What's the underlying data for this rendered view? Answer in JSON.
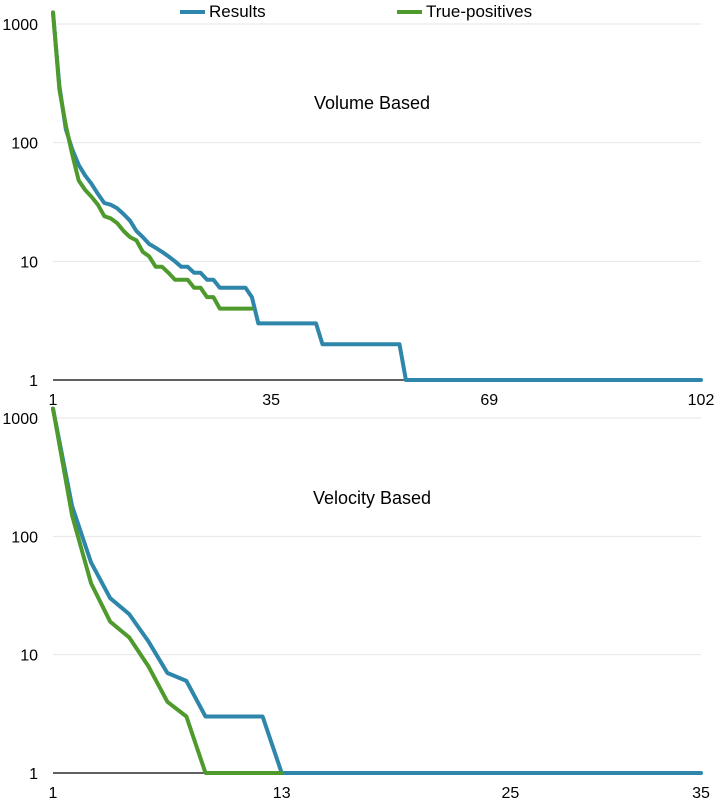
{
  "legend": {
    "items": [
      {
        "label": "Results",
        "color": "#2e86ab"
      },
      {
        "label": "True-positives",
        "color": "#4f9a2c"
      }
    ]
  },
  "colors": {
    "grid": "#e6e6e6",
    "axis": "#000000"
  },
  "chart_data": [
    {
      "type": "line",
      "title": "Volume Based",
      "xlabel": "",
      "ylabel": "",
      "y_scale": "log",
      "ylim": [
        1,
        1000
      ],
      "xlim": [
        1,
        102
      ],
      "x_ticks": [
        1,
        35,
        69,
        102
      ],
      "y_ticks": [
        1,
        10,
        100,
        1000
      ],
      "grid": true,
      "legend_position": "top",
      "series": [
        {
          "name": "Results",
          "color": "#2e86ab",
          "x": [
            1,
            2,
            3,
            4,
            5,
            6,
            7,
            8,
            9,
            10,
            11,
            12,
            13,
            14,
            15,
            16,
            17,
            18,
            19,
            20,
            21,
            22,
            23,
            24,
            25,
            26,
            27,
            28,
            29,
            30,
            31,
            32,
            33,
            34,
            35,
            36,
            37,
            38,
            39,
            40,
            41,
            42,
            43,
            44,
            45,
            46,
            47,
            48,
            49,
            50,
            51,
            52,
            53,
            54,
            55,
            56,
            57,
            58,
            59,
            60,
            61,
            62,
            63,
            64,
            65,
            66,
            67,
            68,
            69,
            70,
            71,
            72,
            73,
            74,
            75,
            76,
            77,
            78,
            79,
            80,
            81,
            82,
            83,
            84,
            85,
            86,
            87,
            88,
            89,
            90,
            91,
            92,
            93,
            94,
            95,
            96,
            97,
            98,
            99,
            100,
            101,
            102
          ],
          "y": [
            1250,
            300,
            130,
            88,
            65,
            53,
            45,
            37,
            31,
            30,
            28,
            25,
            22,
            18,
            16,
            14,
            13,
            12,
            11,
            10,
            9,
            9,
            8,
            8,
            7,
            7,
            6,
            6,
            6,
            6,
            6,
            5,
            3,
            3,
            3,
            3,
            3,
            3,
            3,
            3,
            3,
            3,
            2,
            2,
            2,
            2,
            2,
            2,
            2,
            2,
            2,
            2,
            2,
            2,
            2,
            1,
            1,
            1,
            1,
            1,
            1,
            1,
            1,
            1,
            1,
            1,
            1,
            1,
            1,
            1,
            1,
            1,
            1,
            1,
            1,
            1,
            1,
            1,
            1,
            1,
            1,
            1,
            1,
            1,
            1,
            1,
            1,
            1,
            1,
            1,
            1,
            1,
            1,
            1,
            1,
            1,
            1,
            1,
            1,
            1,
            1,
            1
          ]
        },
        {
          "name": "True-positives",
          "color": "#4f9a2c",
          "x": [
            1,
            2,
            3,
            4,
            5,
            6,
            7,
            8,
            9,
            10,
            11,
            12,
            13,
            14,
            15,
            16,
            17,
            18,
            19,
            20,
            21,
            22,
            23,
            24,
            25,
            26,
            27,
            28,
            29,
            30,
            31,
            32
          ],
          "y": [
            1250,
            280,
            140,
            80,
            48,
            40,
            35,
            30,
            24,
            23,
            21,
            18,
            16,
            15,
            12,
            11,
            9,
            9,
            8,
            7,
            7,
            7,
            6,
            6,
            5,
            5,
            4,
            4,
            4,
            4,
            4,
            4
          ]
        }
      ]
    },
    {
      "type": "line",
      "title": "Velocity Based",
      "xlabel": "",
      "ylabel": "",
      "y_scale": "log",
      "ylim": [
        1,
        1000
      ],
      "xlim": [
        1,
        35
      ],
      "x_ticks": [
        1,
        13,
        25,
        35
      ],
      "y_ticks": [
        1,
        10,
        100,
        1000
      ],
      "grid": true,
      "series": [
        {
          "name": "Results",
          "color": "#2e86ab",
          "x": [
            1,
            2,
            3,
            4,
            5,
            6,
            7,
            8,
            9,
            10,
            11,
            12,
            13,
            14,
            15,
            16,
            17,
            18,
            19,
            20,
            21,
            22,
            23,
            24,
            25,
            26,
            27,
            28,
            29,
            30,
            31,
            32,
            33,
            34,
            35
          ],
          "y": [
            1200,
            180,
            60,
            30,
            22,
            13,
            7,
            6,
            3,
            3,
            3,
            3,
            1,
            1,
            1,
            1,
            1,
            1,
            1,
            1,
            1,
            1,
            1,
            1,
            1,
            1,
            1,
            1,
            1,
            1,
            1,
            1,
            1,
            1,
            1
          ]
        },
        {
          "name": "True-positives",
          "color": "#4f9a2c",
          "x": [
            1,
            2,
            3,
            4,
            5,
            6,
            7,
            8,
            9,
            10,
            11,
            12,
            13
          ],
          "y": [
            1200,
            150,
            40,
            19,
            14,
            8,
            4,
            3,
            1,
            1,
            1,
            1,
            1
          ]
        }
      ]
    }
  ]
}
